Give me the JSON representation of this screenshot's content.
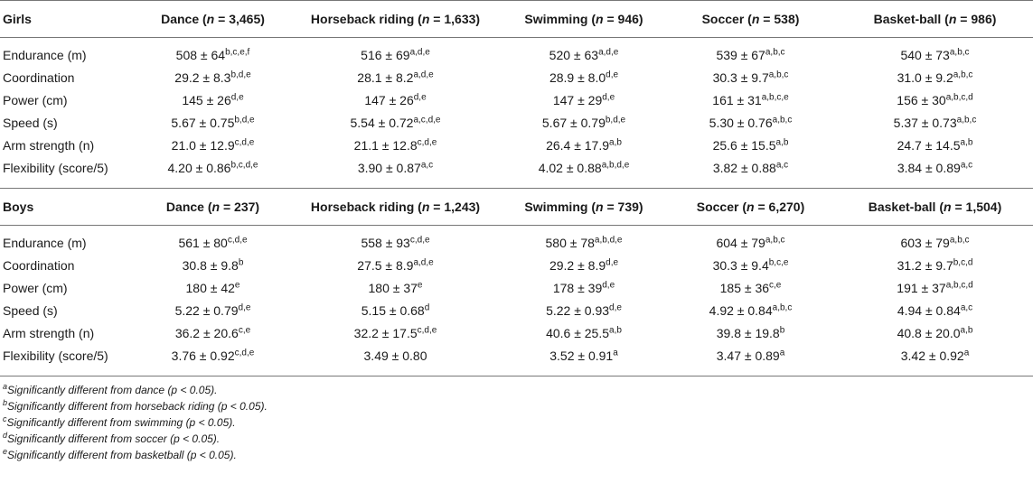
{
  "table": {
    "sections": [
      {
        "group": "Girls",
        "columns": [
          {
            "sport": "Dance",
            "n": "3,465"
          },
          {
            "sport": "Horseback riding",
            "n": "1,633"
          },
          {
            "sport": "Swimming",
            "n": "946"
          },
          {
            "sport": "Soccer",
            "n": "538"
          },
          {
            "sport": "Basket-ball",
            "n": "986"
          }
        ],
        "rows": [
          {
            "label": "Endurance (m)",
            "cells": [
              {
                "v": "508 ± 64",
                "s": "b,c,e,f"
              },
              {
                "v": "516 ± 69",
                "s": "a,d,e"
              },
              {
                "v": "520 ± 63",
                "s": "a,d,e"
              },
              {
                "v": "539 ± 67",
                "s": "a,b,c"
              },
              {
                "v": "540 ± 73",
                "s": "a,b,c"
              }
            ]
          },
          {
            "label": "Coordination",
            "cells": [
              {
                "v": "29.2 ± 8.3",
                "s": "b,d,e"
              },
              {
                "v": "28.1 ± 8.2",
                "s": "a,d,e"
              },
              {
                "v": "28.9 ± 8.0",
                "s": "d,e"
              },
              {
                "v": "30.3 ± 9.7",
                "s": "a,b,c"
              },
              {
                "v": "31.0 ± 9.2",
                "s": "a,b,c"
              }
            ]
          },
          {
            "label": "Power (cm)",
            "cells": [
              {
                "v": "145 ± 26",
                "s": "d,e"
              },
              {
                "v": "147 ± 26",
                "s": "d,e"
              },
              {
                "v": "147 ± 29",
                "s": "d,e"
              },
              {
                "v": "161 ± 31",
                "s": "a,b,c,e"
              },
              {
                "v": "156 ± 30",
                "s": "a,b,c,d"
              }
            ]
          },
          {
            "label": "Speed (s)",
            "cells": [
              {
                "v": "5.67 ± 0.75",
                "s": "b,d,e"
              },
              {
                "v": "5.54 ± 0.72",
                "s": "a,c,d,e"
              },
              {
                "v": "5.67 ± 0.79",
                "s": "b,d,e"
              },
              {
                "v": "5.30 ± 0.76",
                "s": "a,b,c"
              },
              {
                "v": "5.37 ± 0.73",
                "s": "a,b,c"
              }
            ]
          },
          {
            "label": "Arm strength (n)",
            "cells": [
              {
                "v": "21.0 ± 12.9",
                "s": "c,d,e"
              },
              {
                "v": "21.1 ± 12.8",
                "s": "c,d,e"
              },
              {
                "v": "26.4 ± 17.9",
                "s": "a,b"
              },
              {
                "v": "25.6 ± 15.5",
                "s": "a,b"
              },
              {
                "v": "24.7 ± 14.5",
                "s": "a,b"
              }
            ]
          },
          {
            "label": "Flexibility (score/5)",
            "cells": [
              {
                "v": "4.20 ± 0.86",
                "s": "b,c,d,e"
              },
              {
                "v": "3.90 ± 0.87",
                "s": "a,c"
              },
              {
                "v": "4.02 ± 0.88",
                "s": "a,b,d,e"
              },
              {
                "v": "3.82 ± 0.88",
                "s": "a,c"
              },
              {
                "v": "3.84 ± 0.89",
                "s": "a,c"
              }
            ]
          }
        ]
      },
      {
        "group": "Boys",
        "columns": [
          {
            "sport": "Dance",
            "n": "237"
          },
          {
            "sport": "Horseback riding",
            "n": "1,243"
          },
          {
            "sport": "Swimming",
            "n": "739"
          },
          {
            "sport": "Soccer",
            "n": "6,270"
          },
          {
            "sport": "Basket-ball",
            "n": "1,504"
          }
        ],
        "rows": [
          {
            "label": "Endurance (m)",
            "cells": [
              {
                "v": "561 ± 80",
                "s": "c,d,e"
              },
              {
                "v": "558 ± 93",
                "s": "c,d,e"
              },
              {
                "v": "580 ± 78",
                "s": "a,b,d,e"
              },
              {
                "v": "604 ± 79",
                "s": "a,b,c"
              },
              {
                "v": "603 ± 79",
                "s": "a,b,c"
              }
            ]
          },
          {
            "label": "Coordination",
            "cells": [
              {
                "v": "30.8 ± 9.8",
                "s": "b"
              },
              {
                "v": "27.5 ± 8.9",
                "s": "a,d,e"
              },
              {
                "v": "29.2 ± 8.9",
                "s": "d,e"
              },
              {
                "v": "30.3 ± 9.4",
                "s": "b,c,e"
              },
              {
                "v": "31.2 ± 9.7",
                "s": "b,c,d"
              }
            ]
          },
          {
            "label": "Power (cm)",
            "cells": [
              {
                "v": "180 ± 42",
                "s": "e"
              },
              {
                "v": "180 ± 37",
                "s": "e"
              },
              {
                "v": "178 ± 39",
                "s": "d,e"
              },
              {
                "v": "185 ± 36",
                "s": "c,e"
              },
              {
                "v": "191 ± 37",
                "s": "a,b,c,d"
              }
            ]
          },
          {
            "label": "Speed (s)",
            "cells": [
              {
                "v": "5.22 ± 0.79",
                "s": "d,e"
              },
              {
                "v": "5.15 ± 0.68",
                "s": "d"
              },
              {
                "v": "5.22 ± 0.93",
                "s": "d,e"
              },
              {
                "v": "4.92 ± 0.84",
                "s": "a,b,c"
              },
              {
                "v": "4.94 ± 0.84",
                "s": "a,c"
              }
            ]
          },
          {
            "label": "Arm strength (n)",
            "cells": [
              {
                "v": "36.2 ± 20.6",
                "s": "c,e"
              },
              {
                "v": "32.2 ± 17.5",
                "s": "c,d,e"
              },
              {
                "v": "40.6 ± 25.5",
                "s": "a,b"
              },
              {
                "v": "39.8 ± 19.8",
                "s": "b"
              },
              {
                "v": "40.8 ± 20.0",
                "s": "a,b"
              }
            ]
          },
          {
            "label": "Flexibility (score/5)",
            "cells": [
              {
                "v": "3.76 ± 0.92",
                "s": "c,d,e"
              },
              {
                "v": "3.49 ± 0.80",
                "s": ""
              },
              {
                "v": "3.52 ± 0.91",
                "s": "a"
              },
              {
                "v": "3.47 ± 0.89",
                "s": "a"
              },
              {
                "v": "3.42 ± 0.92",
                "s": "a"
              }
            ]
          }
        ]
      }
    ],
    "footnotes": [
      {
        "mark": "a",
        "text": "Significantly different from dance (p < 0.05)."
      },
      {
        "mark": "b",
        "text": "Significantly different from horseback riding (p < 0.05)."
      },
      {
        "mark": "c",
        "text": "Significantly different from swimming (p < 0.05)."
      },
      {
        "mark": "d",
        "text": "Significantly different from soccer (p < 0.05)."
      },
      {
        "mark": "e",
        "text": "Significantly different from basketball (p < 0.05)."
      }
    ]
  }
}
